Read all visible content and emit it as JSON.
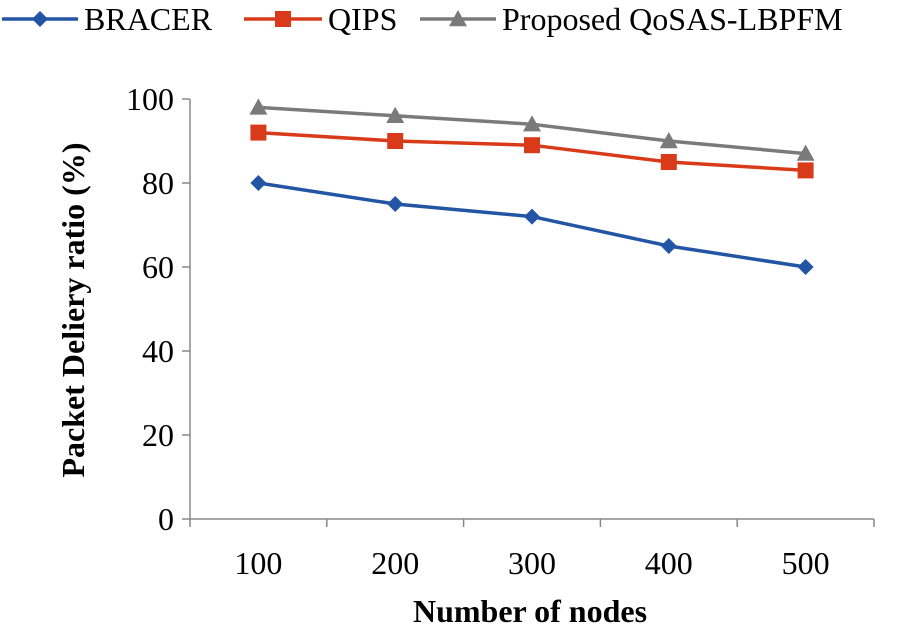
{
  "chart_data": {
    "type": "line",
    "title": "",
    "xlabel": "Number of nodes",
    "ylabel": "Packet Deliery ratio (%)",
    "categories": [
      "100",
      "200",
      "300",
      "400",
      "500"
    ],
    "ylim": [
      0,
      100
    ],
    "yticks": [
      0,
      20,
      40,
      60,
      80,
      100
    ],
    "grid": false,
    "legend_position": "top",
    "series": [
      {
        "name": "BRACER",
        "marker": "diamond",
        "color": "#2255a4",
        "values": [
          80,
          75,
          72,
          65,
          60
        ]
      },
      {
        "name": "QIPS",
        "marker": "square",
        "color": "#d93b1a",
        "values": [
          92,
          90,
          89,
          85,
          83
        ]
      },
      {
        "name": "Proposed QoSAS-LBPFM",
        "marker": "triangle",
        "color": "#7a7a7a",
        "values": [
          98,
          96,
          94,
          90,
          87
        ]
      }
    ]
  }
}
